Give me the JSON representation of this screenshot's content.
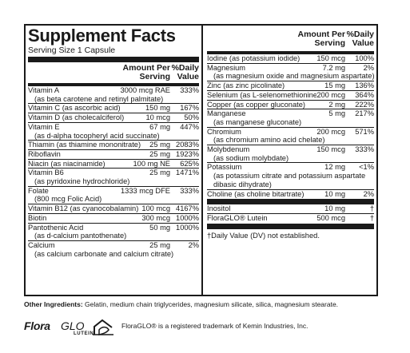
{
  "title": "Supplement Facts",
  "serving_size": "Serving Size 1 Capsule",
  "header": {
    "amount": "Amount Per Serving",
    "dv": "%Daily Value"
  },
  "left_items": [
    {
      "name": "Vitamin A",
      "amount": "3000 mcg RAE",
      "dv": "333%",
      "sub": [
        "(as beta carotene and retinyl palmitate)"
      ]
    },
    {
      "name": "Vitamin C (as ascorbic acid)",
      "amount": "150 mg",
      "dv": "167%",
      "sub": []
    },
    {
      "name": "Vitamin D (as cholecalciferol)",
      "amount": "10 mcg",
      "dv": "50%",
      "sub": []
    },
    {
      "name": "Vitamin E",
      "amount": "67 mg",
      "dv": "447%",
      "sub": [
        "(as d-alpha tocopheryl acid succinate)"
      ]
    },
    {
      "name": "Thiamin (as thiamine mononitrate)",
      "amount": "25 mg",
      "dv": "2083%",
      "sub": []
    },
    {
      "name": "Riboflavin",
      "amount": "25 mg",
      "dv": "1923%",
      "sub": []
    },
    {
      "name": "Niacin (as niacinamide)",
      "amount": "100 mg NE",
      "dv": "625%",
      "sub": []
    },
    {
      "name": "Vitamin B6",
      "amount": "25 mg",
      "dv": "1471%",
      "sub": [
        "(as pyridoxine hydrochloride)"
      ]
    },
    {
      "name": "Folate",
      "amount": "1333 mcg DFE",
      "dv": "333%",
      "sub": [
        "(800 mcg Folic Acid)"
      ]
    },
    {
      "name": "Vitamin B12 (as cyanocobalamin)",
      "amount": "100 mcg",
      "dv": "4167%",
      "sub": []
    },
    {
      "name": "Biotin",
      "amount": "300 mcg",
      "dv": "1000%",
      "sub": []
    },
    {
      "name": "Pantothenic Acid",
      "amount": "50 mg",
      "dv": "1000%",
      "sub": [
        "(as d-calcium pantothenate)"
      ]
    },
    {
      "name": "Calcium",
      "amount": "25 mg",
      "dv": "2%",
      "sub": [
        "(as calcium carbonate and calcium citrate)"
      ]
    }
  ],
  "right_items_a": [
    {
      "name": "Iodine (as potassium iodide)",
      "amount": "150 mcg",
      "dv": "100%",
      "sub": []
    },
    {
      "name": "Magnesium",
      "amount": "7.2 mg",
      "dv": "2%",
      "sub": [
        "(as magnesium oxide and magnesium aspartate)"
      ]
    },
    {
      "name": "Zinc (as zinc picolinate)",
      "amount": "15 mg",
      "dv": "136%",
      "sub": []
    },
    {
      "name": "Selenium (as L-selenomethionine)",
      "amount": "200 mcg",
      "dv": "364%",
      "sub": []
    },
    {
      "name": "Copper (as copper gluconate)",
      "amount": "2 mg",
      "dv": "222%",
      "sub": []
    },
    {
      "name": "Manganese",
      "amount": "5 mg",
      "dv": "217%",
      "sub": [
        "(as manganese gluconate)"
      ]
    },
    {
      "name": "Chromium",
      "amount": "200 mcg",
      "dv": "571%",
      "sub": [
        "(as chromium amino acid chelate)"
      ]
    },
    {
      "name": "Molybdenum",
      "amount": "150 mcg",
      "dv": "333%",
      "sub": [
        "(as sodium molybdate)"
      ]
    },
    {
      "name": "Potassium",
      "amount": "12 mg",
      "dv": "<1%",
      "sub": [
        "(as potassium citrate and potassium aspartate",
        "dibasic dihydrate)"
      ]
    },
    {
      "name": "Choline (as choline bitartrate)",
      "amount": "10 mg",
      "dv": "2%",
      "sub": []
    }
  ],
  "right_items_b": [
    {
      "name": "Inositol",
      "amount": "10 mg",
      "dv": "†",
      "sub": []
    },
    {
      "name": "FloraGLO® Lutein",
      "amount": "500 mcg",
      "dv": "†",
      "sub": []
    }
  ],
  "footnote": "†Daily Value (DV) not established.",
  "other_ingredients": {
    "label": "Other Ingredients:",
    "text": " Gelatin, medium chain triglycerides, magnesium silicate, silica, magnesium stearate."
  },
  "logo": {
    "brand": "Flora",
    "glo": "GLO",
    "lutein": "LUTEIN"
  },
  "trademark": "FloraGLO® is a registered trademark of Kemin Industries, Inc."
}
